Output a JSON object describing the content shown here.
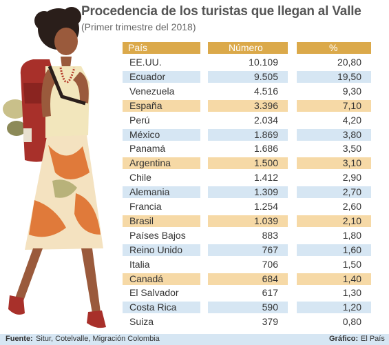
{
  "title": "Procedencia de los turistas que llegan al Valle",
  "subtitle": "(Primer trimestre del 2018)",
  "table": {
    "headers": [
      "País",
      "Número",
      "%"
    ],
    "rows": [
      {
        "pais": "EE.UU.",
        "numero": "10.109",
        "pct": "20,80",
        "style": "white"
      },
      {
        "pais": "Ecuador",
        "numero": "9.505",
        "pct": "19,50",
        "style": "blue"
      },
      {
        "pais": "Venezuela",
        "numero": "4.516",
        "pct": "9,30",
        "style": "white"
      },
      {
        "pais": "España",
        "numero": "3.396",
        "pct": "7,10",
        "style": "orange"
      },
      {
        "pais": "Perú",
        "numero": "2.034",
        "pct": "4,20",
        "style": "white"
      },
      {
        "pais": "México",
        "numero": "1.869",
        "pct": "3,80",
        "style": "blue"
      },
      {
        "pais": "Panamá",
        "numero": "1.686",
        "pct": "3,50",
        "style": "white"
      },
      {
        "pais": "Argentina",
        "numero": "1.500",
        "pct": "3,10",
        "style": "orange"
      },
      {
        "pais": "Chile",
        "numero": "1.412",
        "pct": "2,90",
        "style": "white"
      },
      {
        "pais": "Alemania",
        "numero": "1.309",
        "pct": "2,70",
        "style": "blue"
      },
      {
        "pais": "Francia",
        "numero": "1.254",
        "pct": "2,60",
        "style": "white"
      },
      {
        "pais": "Brasil",
        "numero": "1.039",
        "pct": "2,10",
        "style": "orange"
      },
      {
        "pais": "Países Bajos",
        "numero": "883",
        "pct": "1,80",
        "style": "white"
      },
      {
        "pais": "Reino Unido",
        "numero": "767",
        "pct": "1,60",
        "style": "blue"
      },
      {
        "pais": "Italia",
        "numero": "706",
        "pct": "1,50",
        "style": "white"
      },
      {
        "pais": "Canadá",
        "numero": "684",
        "pct": "1,40",
        "style": "orange"
      },
      {
        "pais": "El Salvador",
        "numero": "617",
        "pct": "1,30",
        "style": "white"
      },
      {
        "pais": "Costa Rica",
        "numero": "590",
        "pct": "1,20",
        "style": "blue"
      },
      {
        "pais": "Suiza",
        "numero": "379",
        "pct": "0,80",
        "style": "white"
      }
    ]
  },
  "footer": {
    "source_label": "Fuente:",
    "source": "Situr, Cotelvalle, Migración Colombia",
    "graphic_label": "Gráfico:",
    "graphic": "El País"
  },
  "colors": {
    "header": "#dba94a",
    "row_blue": "#d6e6f3",
    "row_orange": "#f6d9a6",
    "footer": "#d6e6f3"
  },
  "illustration": {
    "name": "woman-backpacker-illustration"
  }
}
